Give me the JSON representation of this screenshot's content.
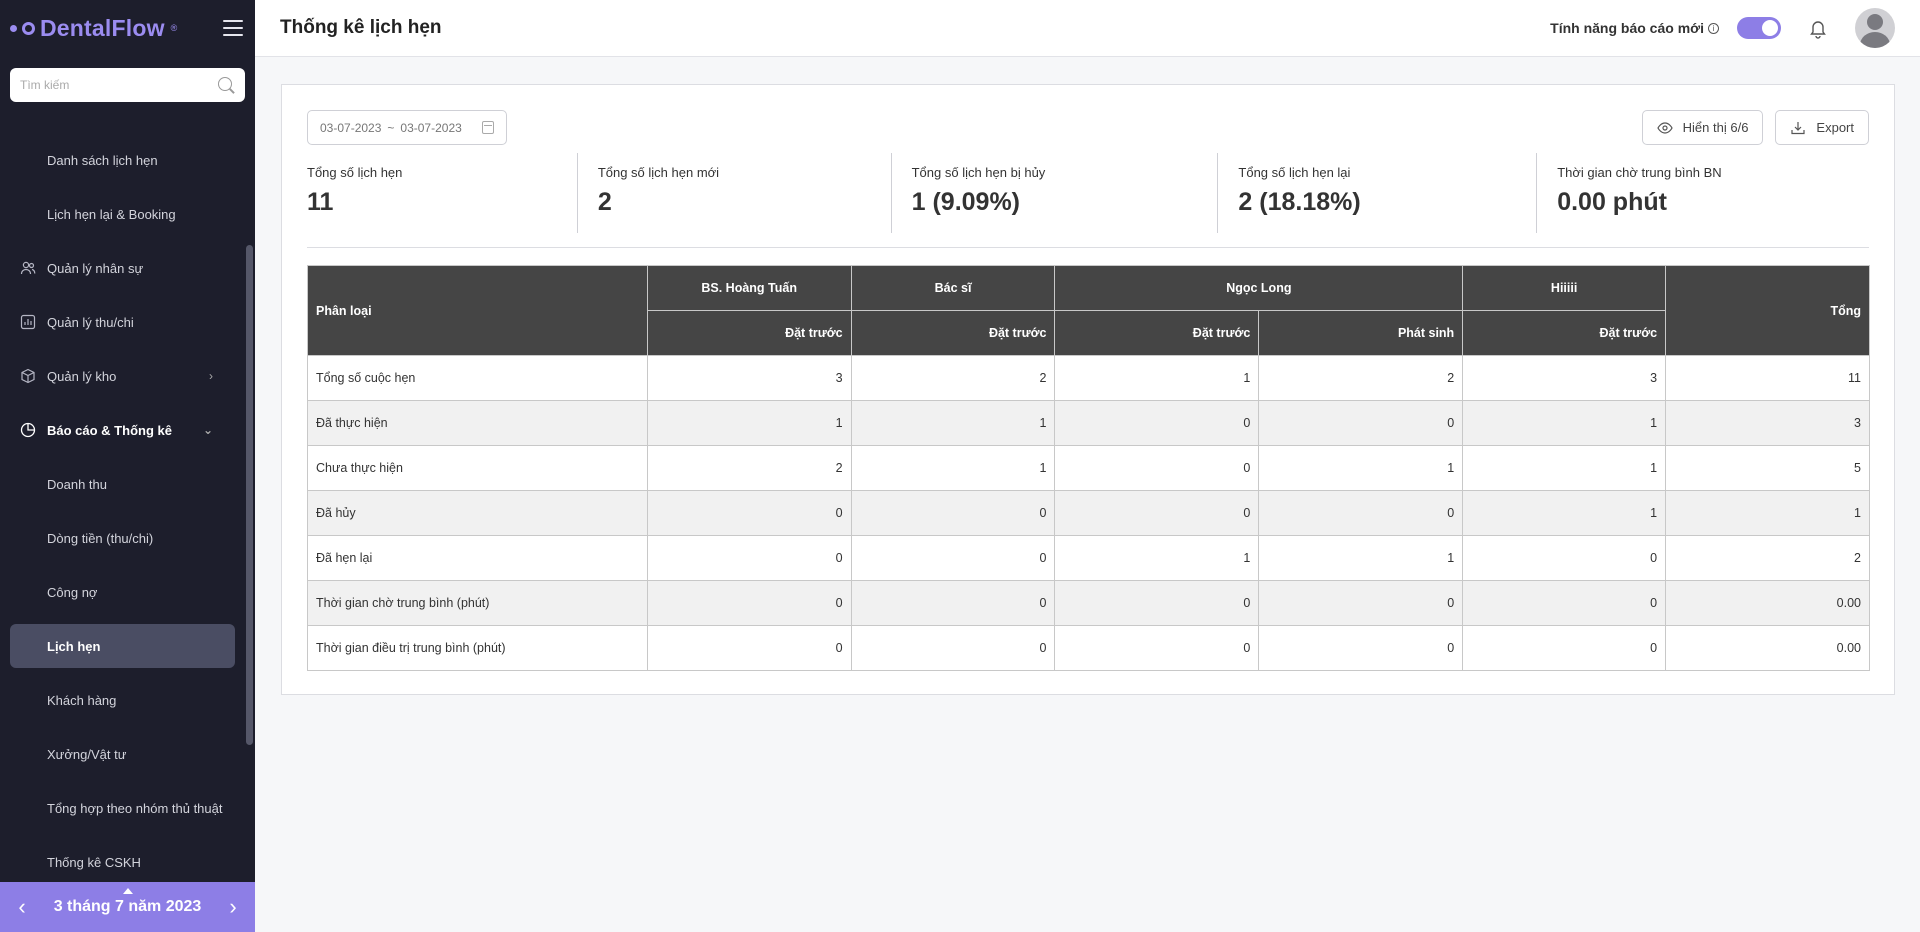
{
  "brand": {
    "name": "DentalFlow",
    "mark": "®"
  },
  "sidebar": {
    "search_placeholder": "Tìm kiếm",
    "items": [
      {
        "label": "Danh sách lịch hẹn",
        "type": "sub"
      },
      {
        "label": "Lịch hẹn lại & Booking",
        "type": "sub"
      },
      {
        "label": "Quản lý nhân sự",
        "type": "main",
        "icon": "users-icon"
      },
      {
        "label": "Quản lý thu/chi",
        "type": "main",
        "icon": "chart-box-icon"
      },
      {
        "label": "Quản lý kho",
        "type": "main",
        "icon": "box-icon"
      },
      {
        "label": "Báo cáo & Thống kê",
        "type": "main",
        "icon": "pie-chart-icon"
      },
      {
        "label": "Doanh thu",
        "type": "sub"
      },
      {
        "label": "Dòng tiền (thu/chi)",
        "type": "sub"
      },
      {
        "label": "Công nợ",
        "type": "sub"
      },
      {
        "label": "Lịch hẹn",
        "type": "sub",
        "active": true
      },
      {
        "label": "Khách hàng",
        "type": "sub"
      },
      {
        "label": "Xưởng/Vật tư",
        "type": "sub"
      },
      {
        "label": "Tổng hợp theo nhóm thủ thuật",
        "type": "sub"
      },
      {
        "label": "Thống kê CSKH",
        "type": "sub"
      }
    ],
    "date_label": "3 tháng 7 năm 2023"
  },
  "header": {
    "title": "Thống kê lịch hẹn",
    "feature_label": "Tính năng báo cáo mới",
    "toggle_on": true
  },
  "toolbar": {
    "date_from": "03-07-2023",
    "date_sep": "~",
    "date_to": "03-07-2023",
    "display_label": "Hiển thị 6/6",
    "export_label": "Export"
  },
  "stats": [
    {
      "label": "Tổng số lịch hẹn",
      "value": "11"
    },
    {
      "label": "Tổng số lịch hẹn mới",
      "value": "2"
    },
    {
      "label": "Tổng số lịch hẹn bị hủy",
      "value": "1 (9.09%)"
    },
    {
      "label": "Tổng số lịch hẹn lại",
      "value": "2 (18.18%)"
    },
    {
      "label": "Thời gian chờ trung bình BN",
      "value": "0.00 phút"
    }
  ],
  "table": {
    "category_header": "Phân loại",
    "total_header": "Tổng",
    "groups": [
      {
        "name": "BS. Hoàng Tuấn",
        "subs": [
          "Đặt trước"
        ]
      },
      {
        "name": "Bác sĩ",
        "subs": [
          "Đặt trước"
        ]
      },
      {
        "name": "Ngọc Long",
        "subs": [
          "Đặt trước",
          "Phát sinh"
        ]
      },
      {
        "name": "Hiiiii",
        "subs": [
          "Đặt trước"
        ]
      }
    ],
    "rows": [
      {
        "label": "Tổng số cuộc hẹn",
        "values": [
          "3",
          "2",
          "1",
          "2",
          "3"
        ],
        "total": "11"
      },
      {
        "label": "Đã thực hiện",
        "values": [
          "1",
          "1",
          "0",
          "0",
          "1"
        ],
        "total": "3"
      },
      {
        "label": "Chưa thực hiện",
        "values": [
          "2",
          "1",
          "0",
          "1",
          "1"
        ],
        "total": "5"
      },
      {
        "label": "Đã hủy",
        "values": [
          "0",
          "0",
          "0",
          "0",
          "1"
        ],
        "total": "1"
      },
      {
        "label": "Đã hẹn lại",
        "values": [
          "0",
          "0",
          "1",
          "1",
          "0"
        ],
        "total": "2"
      },
      {
        "label": "Thời gian chờ trung bình (phút)",
        "values": [
          "0",
          "0",
          "0",
          "0",
          "0"
        ],
        "total": "0.00"
      },
      {
        "label": "Thời gian điều trị trung bình (phút)",
        "values": [
          "0",
          "0",
          "0",
          "0",
          "0"
        ],
        "total": "0.00"
      }
    ]
  },
  "colors": {
    "accent": "#8d7ee6",
    "sidebar_bg": "#1d1e2c",
    "table_header": "#454545"
  }
}
